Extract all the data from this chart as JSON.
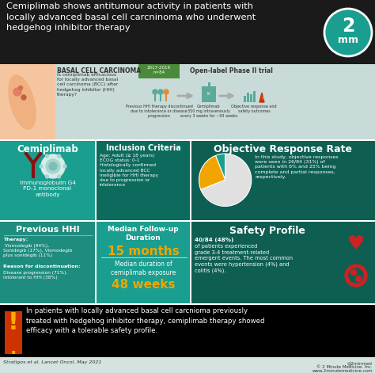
{
  "title": "Cemiplimab shows antitumour activity in patients with\nlocally advanced basal cell carcninoma who underwent\nhedgehog inhibitor therapy",
  "title_bg": "#1a1a1a",
  "teal": "#1a9e8f",
  "teal2": "#1e8c7e",
  "dark_teal": "#0d6b5e",
  "dark_bg": "#0e5e52",
  "orange": "#f0a500",
  "white": "#ffffff",
  "black": "#000000",
  "light_gray": "#dde8e6",
  "banner_bg": "#c8dbd8",
  "dark_gray": "#333333",
  "mid_gray": "#888888",
  "skin": "#f5c5a0",
  "red_icon": "#aa1100",
  "red_heart": "#cc2222",
  "green_teal": "#2ab5a5",
  "banner_text": "BASAL CELL CARCINOMA",
  "banner_subtext": "Is cemiplimab efficacious\nfor locally advanced basal\ncell carcinoma (BCC) after\nhedgehog inhibitor (HHI)\ntherapy?",
  "study_period": "2017-2019\nn=84",
  "trial_type": "Open-label Phase II trial",
  "step1_label": "Previous HHI therapy discontinued\ndue to intolerance or disease\nprogression",
  "step2_label": "Cemiplimab\n350 mg intravenously\nevery 3 weeks for ~93 weeks",
  "step3_label": "Objective response and\nsafety outcomes",
  "cemiplimab_title": "Cemiplimab",
  "cemiplimab_desc": "Immunoglobulin G4\nPD-1 monoclonal\nantibody",
  "inclusion_title": "Inclusion Criteria",
  "inclusion_text": "Age: Adult (≥ 18 years)\nECOG status: 0-1\nHistologically confirmed\nlocally advanced BCC\nineligible for HHI therapy\ndue to progression or\nintolerance",
  "orr_title": "Objective Response Rate",
  "orr_text1": "In this study, objective responses\nwere seen in ",
  "orr_bold": "26/84 (31%)",
  "orr_text2": " of\npatients with 6% and 25% being\ncomplete and ",
  "orr_partial": "partial responses,",
  "orr_text3": "\nrespectively.",
  "pie_complete": 6,
  "pie_partial": 25,
  "pie_other": 69,
  "pie_colors": [
    "#1a9e8f",
    "#f0a500",
    "#e0e0e0"
  ],
  "prev_hhi_title": "Previous HHI",
  "prev_hhi_therapy": "Therapy:",
  "prev_hhi_therapy_val": " Vismodegib (94%),\nSonidegib (17%), Vismodegib\nplus sonidegib (11%)",
  "prev_hhi_reason": "Reason for discontinuation:",
  "prev_hhi_reason_val": "\nDisease progression (71%),\nIntolerant to HHI (38%)",
  "followup_title": "Median Follow-up\nDuration",
  "followup_value": "15 months",
  "exposure_title": "Median duration of\ncemiplimab exposure",
  "exposure_value": "48 weeks",
  "safety_title": "Safety Profile",
  "safety_bold": "40/84 (48%)",
  "safety_text": " of patients experienced\ngrade 3-4 treatment-related\nemergent events. The most common\nevents were hypertension (4%) and\ncolitis (4%).",
  "conclusion_text": "In patients with locally advanced basal cell carcnioma previously\ntreated with hedgehog inhibitor therapy, cemiplimab therapy showed\nefficacy with a tolerable safety profile.",
  "citation": "Stratigos et al. Lancet Oncol. May 2021",
  "watermark1": "@2minmed",
  "watermark2": "© 2 Minute Medicine, Inc.",
  "watermark3": "www.2minutemedicine.com"
}
